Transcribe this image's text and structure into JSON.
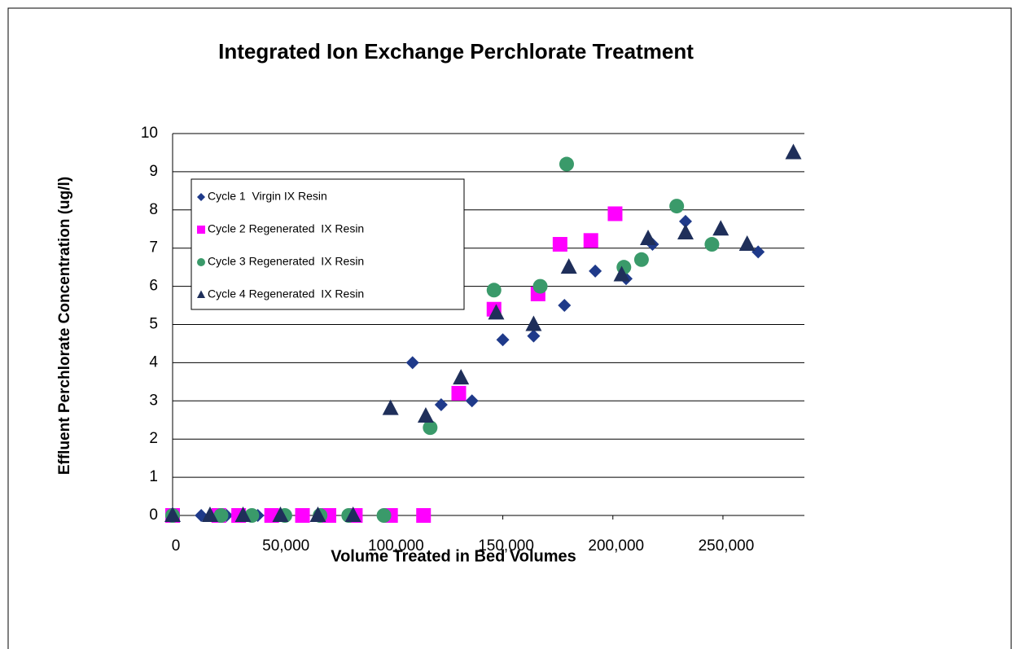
{
  "chart_data": {
    "type": "scatter",
    "title": "Integrated Ion Exchange Perchlorate Treatment",
    "x_label": "Volume Treated in Bed Volumes",
    "y_label": "Effluent Perchlorate Concentration (ug/l)",
    "xlim": [
      0,
      287000
    ],
    "xticks": [
      0,
      {
        "value": 50000,
        "label": "50,000"
      },
      {
        "value": 100000,
        "label": "100,000"
      },
      {
        "value": 150000,
        "label": "150,000"
      },
      {
        "value": 200000,
        "label": "200,000"
      },
      {
        "value": 250000,
        "label": "250,000"
      }
    ],
    "ylim": [
      0,
      10
    ],
    "yticks": [
      0,
      1,
      2,
      3,
      4,
      5,
      6,
      7,
      8,
      9,
      10
    ],
    "grid": true,
    "legend": "upper left",
    "series": [
      {
        "name": "Cycle 1  Virgin IX Resin",
        "color": "#1f3a8a",
        "marker": "diamond",
        "x": [
          0,
          13000,
          24500,
          38700,
          109000,
          122000,
          136000,
          150000,
          164000,
          178000,
          192000,
          206000,
          218000,
          233000,
          266000
        ],
        "values": [
          0,
          0,
          0,
          0,
          4.0,
          2.9,
          3.0,
          4.6,
          4.7,
          5.5,
          6.4,
          6.2,
          7.1,
          7.7,
          6.9
        ]
      },
      {
        "name": "Cycle 2 Regenerated  IX Resin",
        "color": "#ff00ff",
        "marker": "square",
        "x": [
          0,
          21000,
          30000,
          45000,
          59000,
          71000,
          83000,
          99000,
          114000,
          130000,
          146000,
          166000,
          176000,
          190000,
          201000
        ],
        "values": [
          0,
          0,
          0,
          0,
          0,
          0,
          0,
          0,
          0,
          3.2,
          5.4,
          5.8,
          7.1,
          7.2,
          7.9
        ]
      },
      {
        "name": "Cycle 3 Regenerated  IX Resin",
        "color": "#3a9a6a",
        "marker": "circle",
        "x": [
          0,
          22000,
          36000,
          51000,
          67000,
          80000,
          96000,
          117000,
          146000,
          167000,
          179000,
          205000,
          213000,
          229000,
          245000
        ],
        "values": [
          0,
          0,
          0,
          0,
          0,
          0,
          0,
          2.3,
          5.9,
          6.0,
          9.2,
          6.5,
          6.7,
          8.1,
          7.1
        ]
      },
      {
        "name": "Cycle 4 Regenerated  IX Resin",
        "color": "#1f2f5a",
        "marker": "triangle",
        "x": [
          0,
          17000,
          32000,
          49000,
          66000,
          82000,
          99000,
          115000,
          131000,
          147000,
          164000,
          180000,
          204000,
          216000,
          233000,
          249000,
          261000,
          282000
        ],
        "values": [
          0,
          0,
          0,
          0,
          0,
          0,
          2.8,
          2.6,
          3.6,
          5.3,
          5.0,
          6.5,
          6.3,
          7.25,
          7.4,
          7.5,
          7.1,
          9.5
        ]
      }
    ]
  }
}
